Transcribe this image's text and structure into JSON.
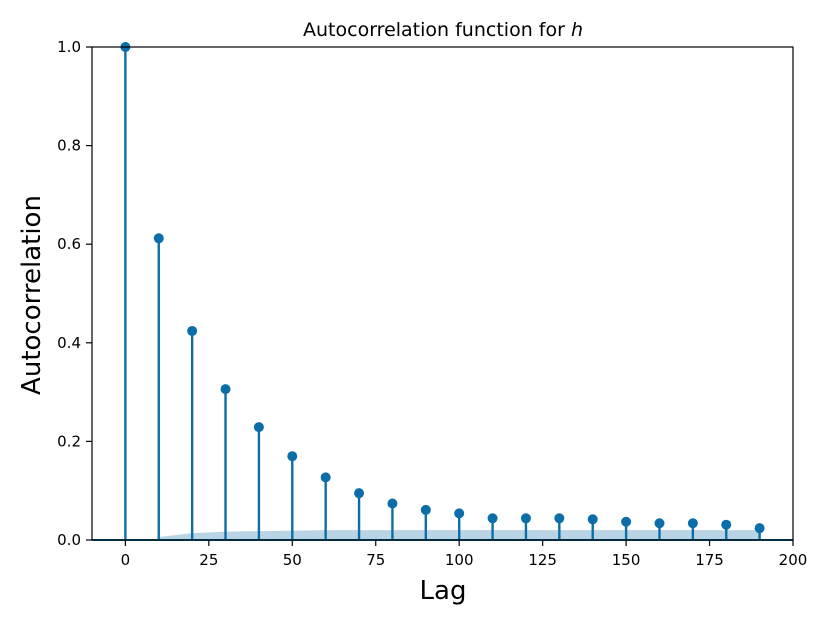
{
  "chart_data": {
    "type": "stem",
    "title": "Autocorrelation function for ",
    "title_var": "h",
    "xlabel": "Lag",
    "ylabel": "Autocorrelation",
    "xlim": [
      -10,
      200
    ],
    "ylim": [
      0,
      1.0
    ],
    "xticks": [
      "0",
      "25",
      "50",
      "75",
      "100",
      "125",
      "150",
      "175",
      "200"
    ],
    "yticks": [
      "0.0",
      "0.2",
      "0.4",
      "0.6",
      "0.8",
      "1.0"
    ],
    "grid": false,
    "series": [
      {
        "x": [
          0,
          10,
          20,
          30,
          40,
          50,
          60,
          70,
          80,
          90,
          100,
          110,
          120,
          130,
          140,
          150,
          160,
          170,
          180,
          190
        ],
        "values": [
          1.0,
          0.612,
          0.424,
          0.306,
          0.229,
          0.17,
          0.127,
          0.095,
          0.074,
          0.061,
          0.054,
          0.044,
          0.044,
          0.044,
          0.042,
          0.037,
          0.034,
          0.034,
          0.031,
          0.024
        ],
        "color": "#0b6ea8"
      }
    ],
    "confidence_band": {
      "x": [
        10,
        20,
        30,
        40,
        50,
        60,
        70,
        80,
        90,
        100,
        110,
        120,
        130,
        140,
        150,
        160,
        170,
        180,
        190
      ],
      "upper": [
        0.006,
        0.014,
        0.017,
        0.018,
        0.019,
        0.02,
        0.02,
        0.02,
        0.02,
        0.02,
        0.02,
        0.02,
        0.02,
        0.02,
        0.02,
        0.02,
        0.02,
        0.02,
        0.02
      ],
      "color": "#aecde1"
    }
  }
}
